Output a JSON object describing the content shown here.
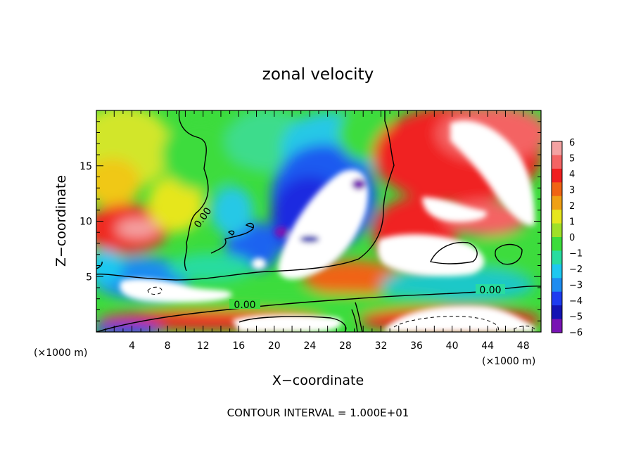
{
  "chart_data": {
    "type": "heatmap",
    "title": "zonal velocity",
    "xlabel": "X−coordinate",
    "ylabel": "Z−coordinate",
    "x_unit_left": "(×1000 m)",
    "x_unit_right": "(×1000 m)",
    "xlim": [
      0,
      50
    ],
    "ylim": [
      0,
      20
    ],
    "x_ticks": [
      "4",
      "8",
      "12",
      "16",
      "20",
      "24",
      "28",
      "32",
      "36",
      "40",
      "44",
      "48"
    ],
    "y_ticks": [
      "5",
      "10",
      "15"
    ],
    "colorbar": {
      "labels": [
        "6",
        "5",
        "4",
        "3",
        "2",
        "1",
        "0",
        "−1",
        "−2",
        "−3",
        "−4",
        "−5",
        "−6"
      ],
      "colors": [
        "#f4a2a2",
        "#f46464",
        "#f02020",
        "#f06414",
        "#f0a014",
        "#e6e61e",
        "#a0e028",
        "#3cdc3c",
        "#28dca0",
        "#1ec8f0",
        "#1e8cf0",
        "#1e3cf0",
        "#1414b4",
        "#7814b4"
      ]
    },
    "contour_labels": [
      "0.00",
      "0.00",
      "0.00"
    ],
    "footer": "CONTOUR INTERVAL = 1.000E+01"
  }
}
